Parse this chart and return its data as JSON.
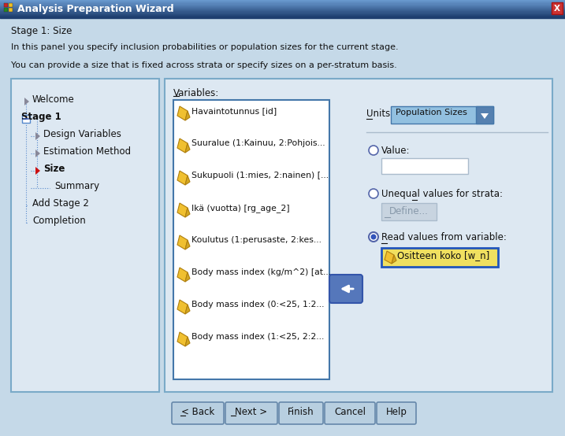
{
  "title": "Analysis Preparation Wizard",
  "bg_color": "#c5d9e8",
  "title_bar_gradient_top": "#6090c0",
  "title_bar_gradient_bottom": "#1a3a6a",
  "title_text_color": "#ffffff",
  "stage_text": "Stage 1: Size",
  "desc1": "In this panel you specify inclusion probabilities or population sizes for the current stage.",
  "desc2": "You can provide a size that is fixed across strata or specify sizes on a per-stratum basis.",
  "variables_label": "Variables:",
  "variables": [
    "Havaintotunnus [id]",
    "Suuralue (1:Kainuu, 2:Pohjois...",
    "Sukupuoli (1:mies, 2:nainen) [...",
    "Ikä (vuotta) [rg_age_2]",
    "Koulutus (1:perusaste, 2:kes...",
    "Body mass index (kg/m^2) [at...",
    "Body mass index (0:<25, 1:2...",
    "Body mass index (1:<25, 2:2..."
  ],
  "units_label": "Units:",
  "units_value": "Population Sizes",
  "radio_value": "Value:",
  "radio_unequal": "Unequal values for strata:",
  "radio_read": "Read values from variable:",
  "define_btn": "Define...",
  "read_variable": "Ositteen koko [w_n]",
  "btn_back": "< Back",
  "btn_next": "Next >",
  "btn_finish": "Finish",
  "btn_cancel": "Cancel",
  "btn_help": "Help",
  "panel_bg": "#dae6f0",
  "inner_panel_bg": "#dde8f2",
  "list_bg": "#ffffff",
  "list_border": "#4477aa",
  "panel_border": "#7aaac8",
  "tree_items": [
    {
      "label": "Welcome",
      "indent": 1,
      "arrow": "gray"
    },
    {
      "label": "Stage 1",
      "indent": 0,
      "arrow": "none",
      "has_minus": true
    },
    {
      "label": "Design Variables",
      "indent": 2,
      "arrow": "gray"
    },
    {
      "label": "Estimation Method",
      "indent": 2,
      "arrow": "gray"
    },
    {
      "label": "Size",
      "indent": 2,
      "arrow": "red"
    },
    {
      "label": "Summary",
      "indent": 3,
      "arrow": "none"
    },
    {
      "label": "Add Stage 2",
      "indent": 1,
      "arrow": "none"
    },
    {
      "label": "Completion",
      "indent": 1,
      "arrow": "none"
    }
  ],
  "dropdown_bg": "#92c0e0",
  "dropdown_arrow_bg": "#5580b0",
  "arrow_btn_color": "#5577bb",
  "read_var_bg": "#f0e060",
  "read_var_border": "#2255bb"
}
